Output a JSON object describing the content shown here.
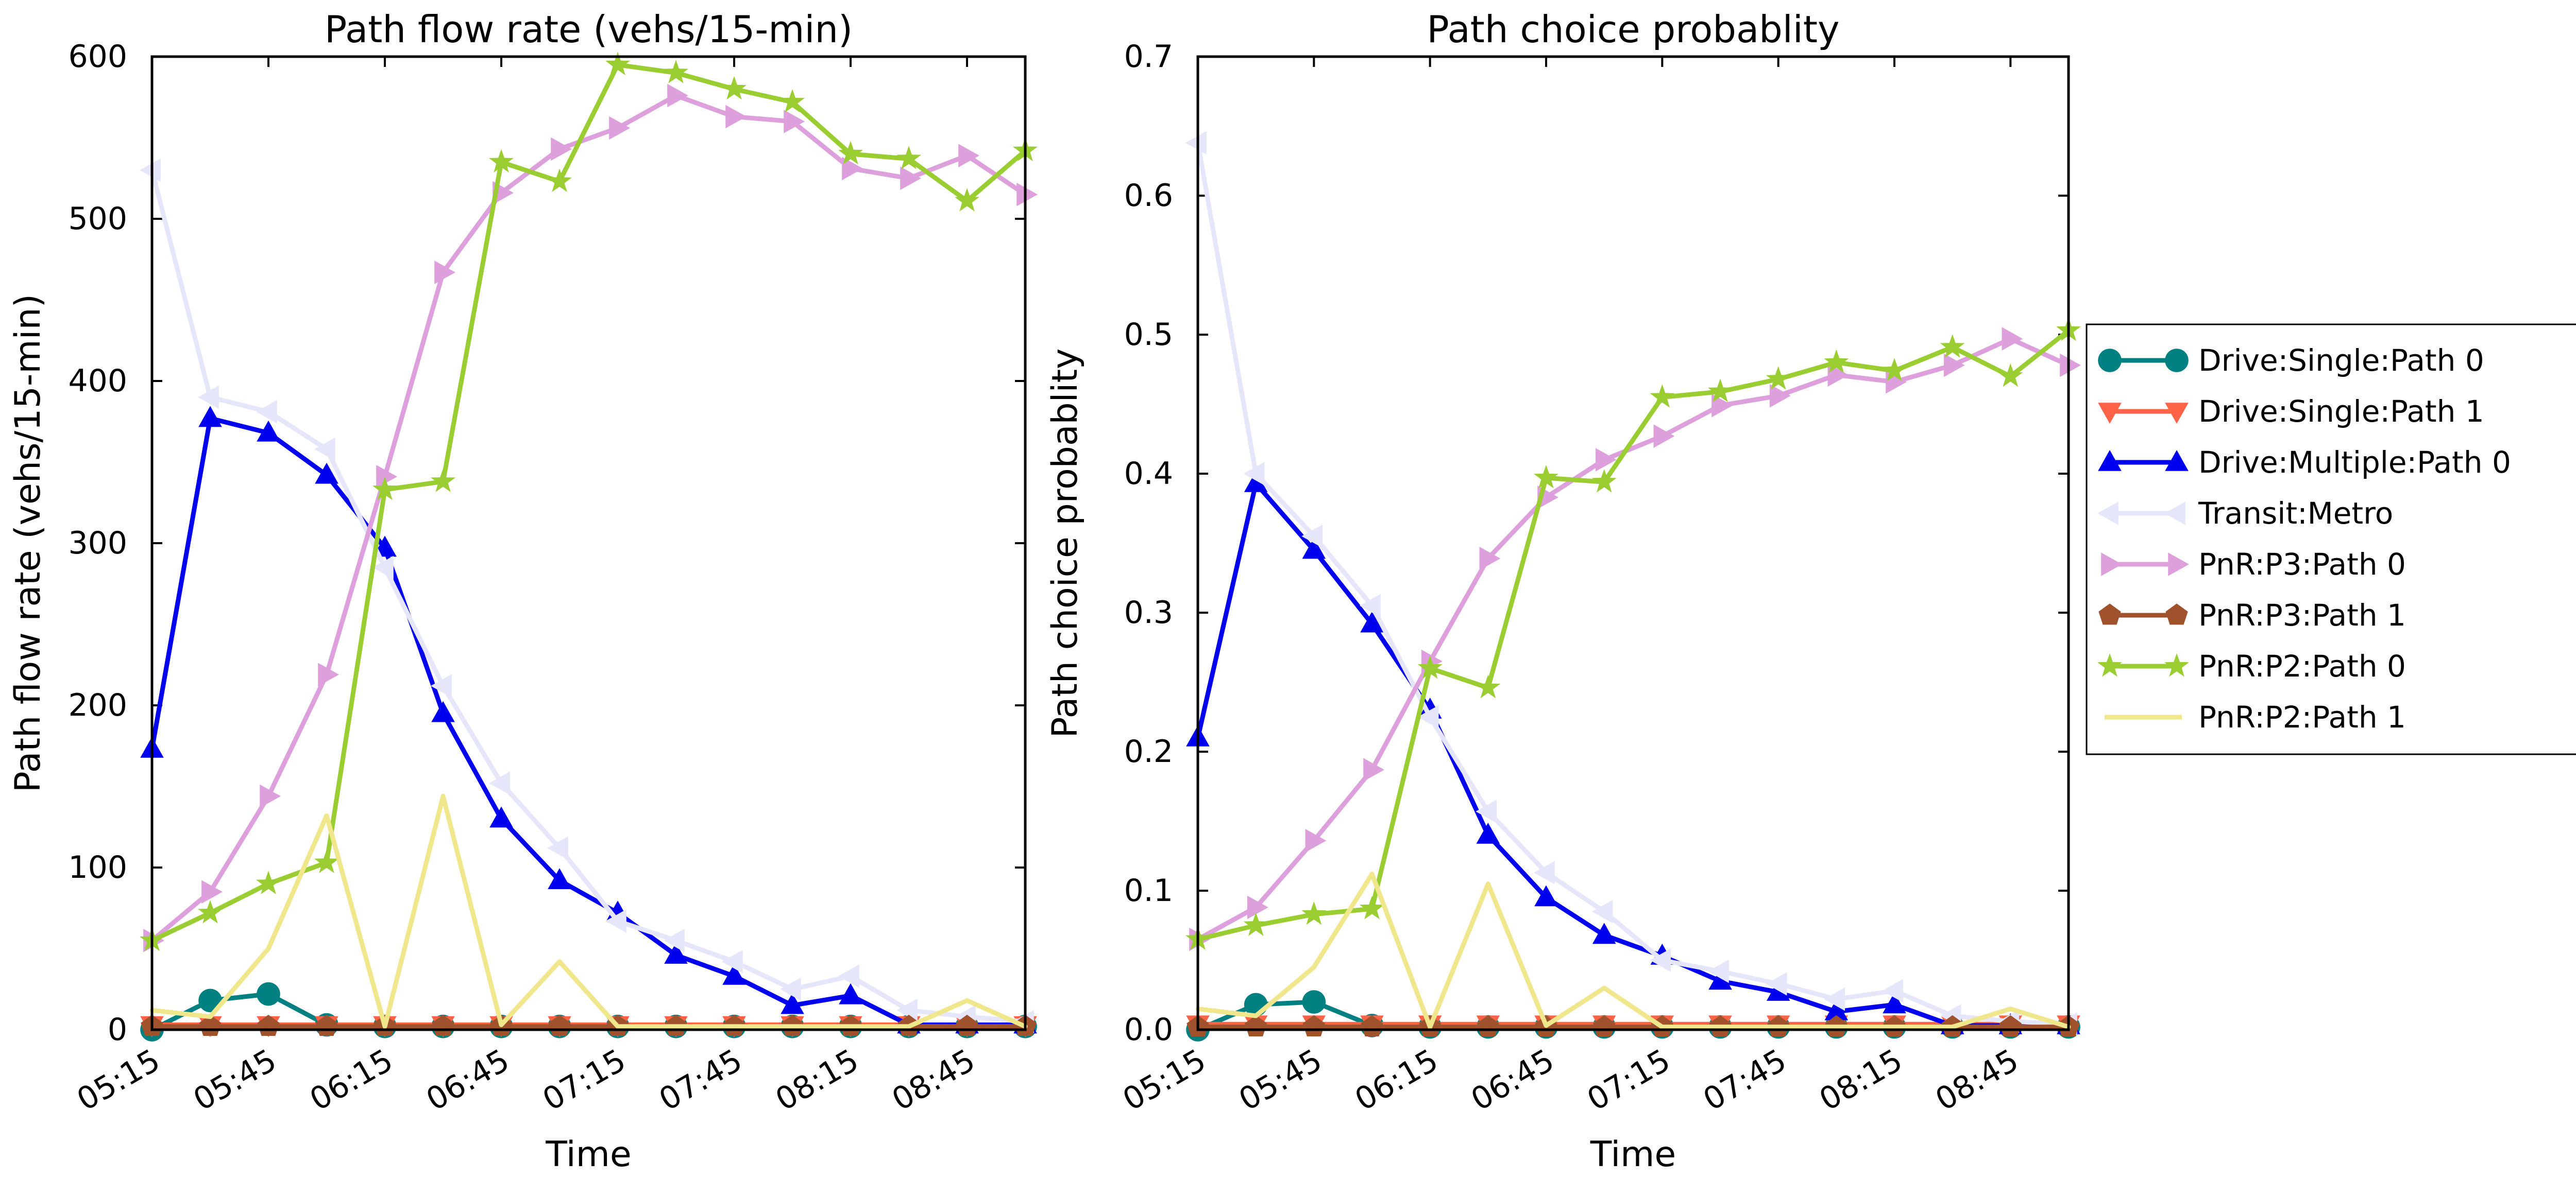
{
  "colors": {
    "Drive:Single:Path 0": "#008080",
    "Drive:Single:Path 1": "#ff6347",
    "Drive:Multiple:Path 0": "#0000ee",
    "Transit:Metro": "#e6e6fa",
    "PnR:P3:Path 0": "#dda0dd",
    "PnR:P3:Path 1": "#a0522d",
    "PnR:P2:Path 0": "#9acd32",
    "PnR:P2:Path 1": "#f0e68c"
  },
  "markers": {
    "Drive:Single:Path 0": "circle",
    "Drive:Single:Path 1": "triangle-down",
    "Drive:Multiple:Path 0": "triangle-up",
    "Transit:Metro": "triangle-left",
    "PnR:P3:Path 0": "triangle-right",
    "PnR:P3:Path 1": "pentagon",
    "PnR:P2:Path 0": "star",
    "PnR:P2:Path 1": "none"
  },
  "legend": {
    "placement": "right",
    "entries": [
      "Drive:Single:Path 0",
      "Drive:Single:Path 1",
      "Drive:Multiple:Path 0",
      "Transit:Metro",
      "PnR:P3:Path 0",
      "PnR:P3:Path 1",
      "PnR:P2:Path 0",
      "PnR:P2:Path 1"
    ]
  },
  "chart_data": [
    {
      "type": "line",
      "title": "Path flow rate (vehs/15-min)",
      "xlabel": "Time",
      "ylabel": "Path flow rate (vehs/15-min)",
      "xticks": [
        "05:15",
        "05:45",
        "06:15",
        "06:45",
        "07:15",
        "07:45",
        "08:15",
        "08:45"
      ],
      "x": [
        "05:15",
        "05:30",
        "05:45",
        "06:00",
        "06:15",
        "06:30",
        "06:45",
        "07:00",
        "07:15",
        "07:30",
        "07:45",
        "08:00",
        "08:15",
        "08:30",
        "08:45",
        "09:00"
      ],
      "xlim": [
        "05:15",
        "09:00"
      ],
      "ylim": [
        0,
        600
      ],
      "yticks": [
        "0",
        "100",
        "200",
        "300",
        "400",
        "500",
        "600"
      ],
      "grid": false,
      "series": [
        {
          "name": "Drive:Single:Path 0",
          "values": [
            0,
            18,
            22,
            3,
            2,
            2,
            2,
            2,
            2,
            2,
            2,
            2,
            2,
            2,
            2,
            2
          ]
        },
        {
          "name": "Drive:Single:Path 1",
          "values": [
            3,
            3,
            3,
            3,
            3,
            3,
            3,
            3,
            3,
            3,
            3,
            3,
            3,
            3,
            3,
            3
          ]
        },
        {
          "name": "Drive:Multiple:Path 0",
          "values": [
            173,
            377,
            368,
            342,
            297,
            195,
            130,
            92,
            72,
            46,
            33,
            15,
            21,
            3,
            3,
            3
          ]
        },
        {
          "name": "Transit:Metro",
          "values": [
            530,
            390,
            381,
            358,
            285,
            212,
            152,
            112,
            67,
            55,
            42,
            25,
            33,
            12,
            8,
            5
          ]
        },
        {
          "name": "PnR:P3:Path 0",
          "values": [
            55,
            85,
            144,
            219,
            341,
            467,
            516,
            543,
            556,
            576,
            563,
            560,
            531,
            525,
            539,
            515
          ]
        },
        {
          "name": "PnR:P3:Path 1",
          "values": [
            2,
            2,
            2,
            2,
            2,
            2,
            2,
            2,
            2,
            2,
            2,
            2,
            2,
            2,
            2,
            2
          ]
        },
        {
          "name": "PnR:P2:Path 0",
          "values": [
            55,
            72,
            90,
            103,
            333,
            338,
            535,
            523,
            595,
            590,
            580,
            572,
            540,
            537,
            511,
            542
          ]
        },
        {
          "name": "PnR:P2:Path 1",
          "values": [
            12,
            8,
            50,
            132,
            2,
            144,
            3,
            42,
            2,
            2,
            2,
            2,
            2,
            2,
            18,
            2
          ]
        }
      ]
    },
    {
      "type": "line",
      "title": "Path choice probablity",
      "xlabel": "Time",
      "ylabel": "Path choice probablity",
      "xticks": [
        "05:15",
        "05:45",
        "06:15",
        "06:45",
        "07:15",
        "07:45",
        "08:15",
        "08:45"
      ],
      "x": [
        "05:15",
        "05:30",
        "05:45",
        "06:00",
        "06:15",
        "06:30",
        "06:45",
        "07:00",
        "07:15",
        "07:30",
        "07:45",
        "08:00",
        "08:15",
        "08:30",
        "08:45",
        "09:00"
      ],
      "xlim": [
        "05:15",
        "09:00"
      ],
      "ylim": [
        0,
        0.7
      ],
      "yticks": [
        "0.0",
        "0.1",
        "0.2",
        "0.3",
        "0.4",
        "0.5",
        "0.6",
        "0.7"
      ],
      "grid": false,
      "series": [
        {
          "name": "Drive:Single:Path 0",
          "values": [
            0.0,
            0.018,
            0.02,
            0.003,
            0.002,
            0.002,
            0.002,
            0.002,
            0.002,
            0.002,
            0.002,
            0.002,
            0.002,
            0.002,
            0.002,
            0.002
          ]
        },
        {
          "name": "Drive:Single:Path 1",
          "values": [
            0.004,
            0.004,
            0.004,
            0.004,
            0.004,
            0.004,
            0.004,
            0.004,
            0.004,
            0.004,
            0.004,
            0.004,
            0.004,
            0.004,
            0.004,
            0.004
          ]
        },
        {
          "name": "Drive:Multiple:Path 0",
          "values": [
            0.21,
            0.393,
            0.345,
            0.292,
            0.23,
            0.14,
            0.095,
            0.068,
            0.053,
            0.035,
            0.027,
            0.013,
            0.018,
            0.003,
            0.003,
            0.003
          ]
        },
        {
          "name": "Transit:Metro",
          "values": [
            0.638,
            0.4,
            0.355,
            0.305,
            0.225,
            0.157,
            0.113,
            0.085,
            0.05,
            0.042,
            0.033,
            0.022,
            0.028,
            0.01,
            0.006,
            0.004
          ]
        },
        {
          "name": "PnR:P3:Path 0",
          "values": [
            0.065,
            0.088,
            0.136,
            0.187,
            0.265,
            0.339,
            0.383,
            0.41,
            0.427,
            0.449,
            0.456,
            0.471,
            0.466,
            0.478,
            0.497,
            0.478
          ]
        },
        {
          "name": "PnR:P3:Path 1",
          "values": [
            0.002,
            0.002,
            0.002,
            0.002,
            0.002,
            0.002,
            0.002,
            0.002,
            0.002,
            0.002,
            0.002,
            0.002,
            0.002,
            0.002,
            0.002,
            0.002
          ]
        },
        {
          "name": "PnR:P2:Path 0",
          "values": [
            0.065,
            0.075,
            0.083,
            0.087,
            0.26,
            0.246,
            0.397,
            0.394,
            0.455,
            0.459,
            0.468,
            0.48,
            0.474,
            0.491,
            0.47,
            0.503
          ]
        },
        {
          "name": "PnR:P2:Path 1",
          "values": [
            0.015,
            0.01,
            0.045,
            0.112,
            0.002,
            0.105,
            0.003,
            0.03,
            0.002,
            0.002,
            0.002,
            0.002,
            0.002,
            0.002,
            0.015,
            0.002
          ]
        }
      ]
    }
  ]
}
